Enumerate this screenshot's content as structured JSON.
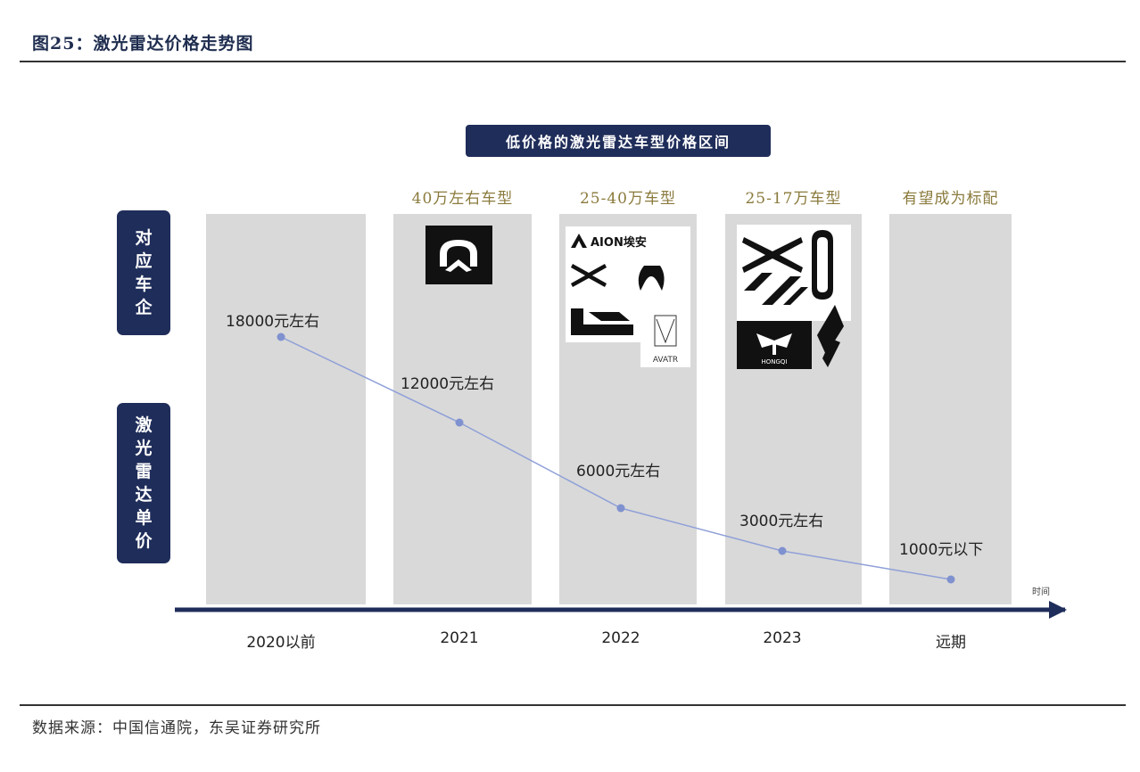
{
  "figure": {
    "title": "图25：激光雷达价格走势图",
    "source": "数据来源：中国信通院，东吴证券研究所"
  },
  "chart_data": {
    "type": "line",
    "title": "低价格的激光雷达车型价格区间",
    "categories": [
      "2020以前",
      "2021",
      "2022",
      "2023",
      "远期"
    ],
    "segment_labels": [
      "",
      "40万左右车型",
      "25-40万车型",
      "25-17万车型",
      "有望成为标配"
    ],
    "series": [
      {
        "values": [
          18000,
          12000,
          6000,
          3000,
          1000
        ],
        "point_labels": [
          "18000元左右",
          "12000元左右",
          "6000元左右",
          "3000元左右",
          "1000元以下"
        ],
        "color": "#8fa0d8"
      }
    ],
    "xlabel": "时间",
    "row_labels": [
      "对应车企",
      "激光雷达单价"
    ],
    "logos": {
      "2021": [
        "nio-logo"
      ],
      "2022": [
        "aion-logo",
        "xpeng-logo",
        "wm-logo",
        "lixiang-logo",
        "avatr-logo"
      ],
      "2023": [
        "xpeng-logo",
        "zeekr-logo",
        "hongqi-logo",
        "jiyue-logo",
        "feifan-logo"
      ]
    },
    "logo_text": {
      "aion": "AION埃安",
      "avatr": "AVATR",
      "hongqi": "HONGQI"
    },
    "colors": {
      "navy": "#1f2d5a",
      "band": "#d9d9d9",
      "line": "#8fa0d8",
      "gold": "#8a7a3c"
    }
  }
}
